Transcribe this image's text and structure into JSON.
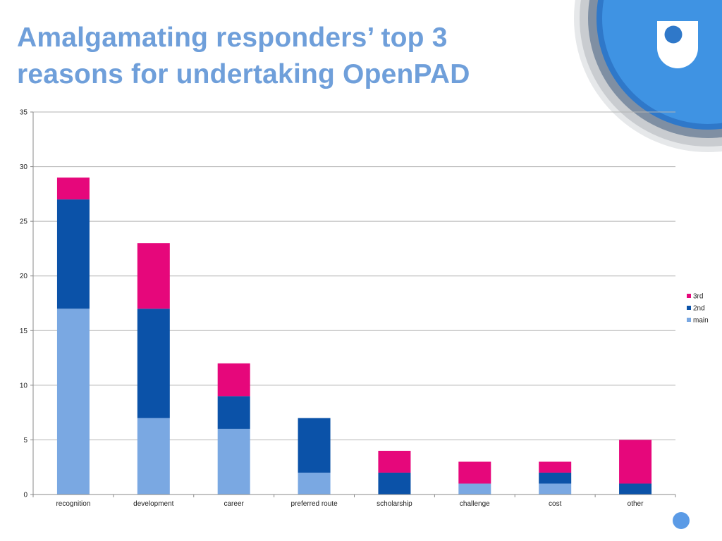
{
  "slide": {
    "title_line1": "Amalgamating responders’ top 3",
    "title_line2": "reasons for undertaking OpenPAD"
  },
  "logo": {
    "icon": "open-university-logo"
  },
  "colors": {
    "title": "#6f9fda",
    "main": "#7aa8e2",
    "2nd": "#0b52a8",
    "3rd": "#e6077b",
    "grid": "#b3b3b3",
    "logo_blue": "#3b8de0"
  },
  "chart_data": {
    "type": "bar",
    "stacked": true,
    "categories": [
      "recognition",
      "development",
      "career",
      "preferred route",
      "scholarship",
      "challenge",
      "cost",
      "other"
    ],
    "series": [
      {
        "name": "main",
        "values": [
          17,
          7,
          6,
          2,
          0,
          1,
          1,
          0
        ]
      },
      {
        "name": "2nd",
        "values": [
          10,
          10,
          3,
          5,
          2,
          0,
          1,
          1
        ]
      },
      {
        "name": "3rd",
        "values": [
          2,
          6,
          3,
          0,
          2,
          2,
          1,
          4
        ]
      }
    ],
    "ylim": [
      0,
      35
    ],
    "yticks": [
      0,
      5,
      10,
      15,
      20,
      25,
      30,
      35
    ],
    "grid": true,
    "legend": {
      "position": "right",
      "order": [
        "3rd",
        "2nd",
        "main"
      ]
    }
  }
}
